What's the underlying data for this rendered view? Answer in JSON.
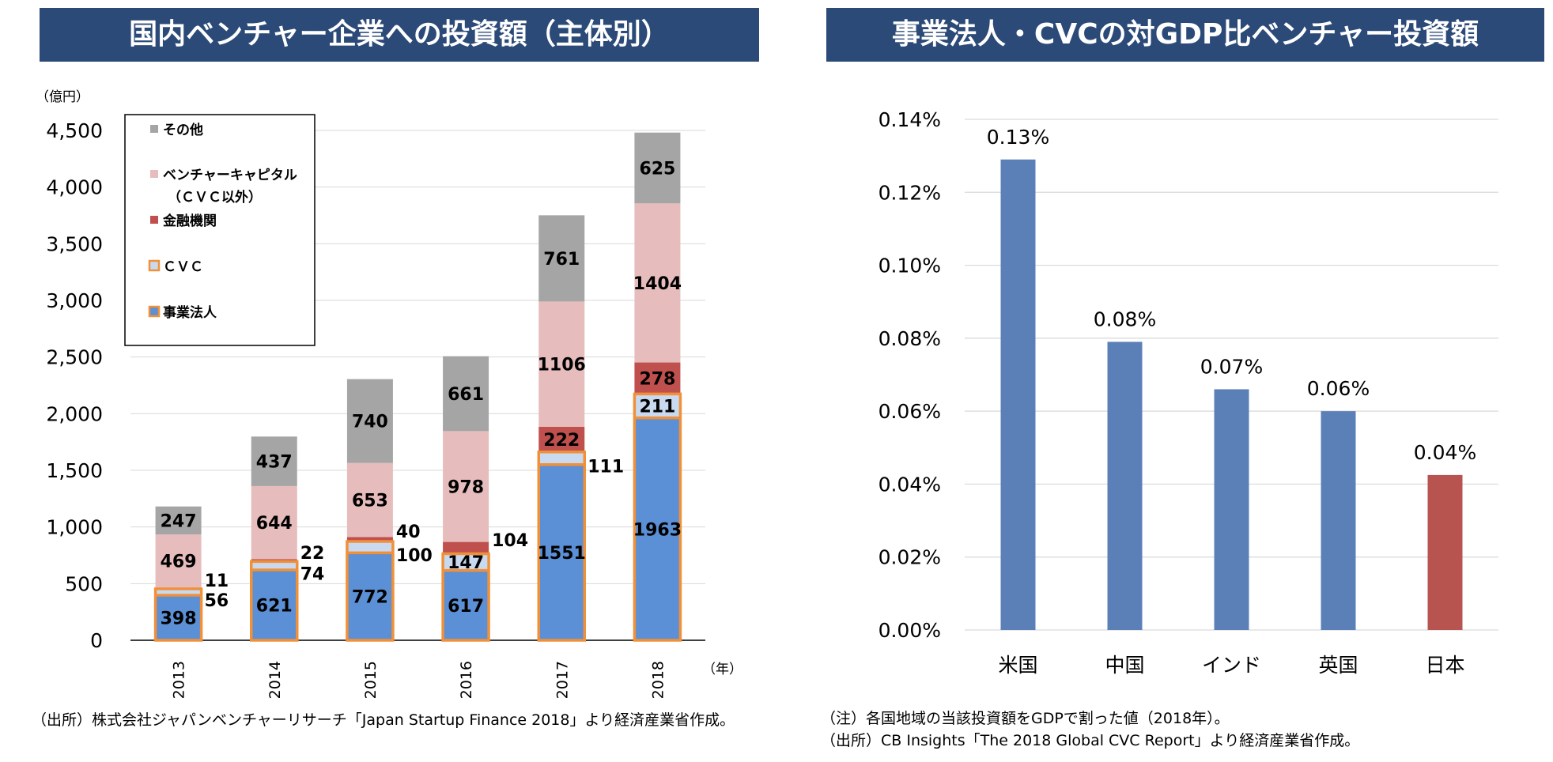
{
  "left": {
    "title": "国内ベンチャー企業への投資額（主体別）",
    "unit_label": "（億円）",
    "x_unit_label": "（年）",
    "source": "（出所）株式会社ジャパンベンチャーリサーチ「Japan Startup Finance 2018」より経済産業省作成。"
  },
  "right": {
    "title": "事業法人・CVCの対GDP比ベンチャー投資額",
    "note": "（注）各国地域の当該投資額をGDPで割った値（2018年）。",
    "source": "（出所）CB Insights「The 2018 Global CVC Report」より経済産業省作成。"
  },
  "chart_data": [
    {
      "type": "bar",
      "stacked": true,
      "title": "国内ベンチャー企業への投資額（主体別）",
      "ylabel": "（億円）",
      "xlabel": "（年）",
      "ylim": [
        0,
        4500
      ],
      "yticks": [
        0,
        500,
        1000,
        1500,
        2000,
        2500,
        3000,
        3500,
        4000,
        4500
      ],
      "ytick_labels": [
        "0",
        "500",
        "1,000",
        "1,500",
        "2,000",
        "2,500",
        "3,000",
        "3,500",
        "4,000",
        "4,500"
      ],
      "categories": [
        "2013",
        "2014",
        "2015",
        "2016",
        "2017",
        "2018"
      ],
      "legend_position": "top-left",
      "series": [
        {
          "name": "事業法人",
          "color": "#5b8fd6",
          "values": [
            398,
            621,
            772,
            617,
            1551,
            1963
          ]
        },
        {
          "name": "ＣＶＣ",
          "color": "#c9daf0",
          "values": [
            56,
            74,
            100,
            147,
            111,
            211
          ]
        },
        {
          "name": "金融機関",
          "color": "#c0504d",
          "values": [
            11,
            22,
            40,
            104,
            222,
            278
          ]
        },
        {
          "name": "ベンチャーキャピタル（ＣＶＣ以外）",
          "color": "#e6bcbc",
          "values": [
            469,
            644,
            653,
            978,
            1106,
            1404
          ]
        },
        {
          "name": "その他",
          "color": "#a5a5a5",
          "values": [
            247,
            437,
            740,
            661,
            761,
            625
          ]
        }
      ],
      "legend": [
        {
          "label": "その他",
          "color": "#a5a5a5"
        },
        {
          "label": "ベンチャーキャピタル",
          "label2": "（ＣＶＣ以外）",
          "color": "#e6bcbc"
        },
        {
          "label": "金融機関",
          "color": "#c0504d"
        },
        {
          "label": "ＣＶＣ",
          "color": "#c9daf0",
          "outline": "#f0913a"
        },
        {
          "label": "事業法人",
          "color": "#5b8fd6",
          "outline": "#f0913a"
        }
      ],
      "highlight_outline": {
        "color": "#f0913a",
        "series": [
          "事業法人",
          "ＣＶＣ"
        ]
      }
    },
    {
      "type": "bar",
      "title": "事業法人・CVCの対GDP比ベンチャー投資額",
      "ylim": [
        0,
        0.14
      ],
      "yticks": [
        0,
        0.02,
        0.04,
        0.06,
        0.08,
        0.1,
        0.12,
        0.14
      ],
      "ytick_labels": [
        "0.00%",
        "0.02%",
        "0.04%",
        "0.06%",
        "0.08%",
        "0.10%",
        "0.12%",
        "0.14%"
      ],
      "grid": true,
      "categories": [
        "米国",
        "中国",
        "インド",
        "英国",
        "日本"
      ],
      "values": [
        0.129,
        0.079,
        0.066,
        0.06,
        0.0425
      ],
      "data_labels": [
        "0.13%",
        "0.08%",
        "0.07%",
        "0.06%",
        "0.04%"
      ],
      "colors": [
        "#5b80b8",
        "#5b80b8",
        "#5b80b8",
        "#5b80b8",
        "#b85450"
      ]
    }
  ]
}
